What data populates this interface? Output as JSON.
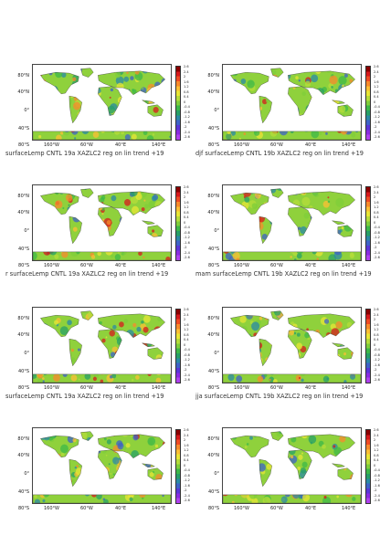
{
  "colorbar": {
    "labels": [
      "2.6",
      "2.4",
      "2",
      "1.6",
      "1.2",
      "0.8",
      "0.4",
      "0",
      "-0.4",
      "-0.8",
      "-1.2",
      "-1.6",
      "-2",
      "-2.4",
      "-2.6"
    ],
    "colors": [
      "#8b0000",
      "#d7191c",
      "#f04a24",
      "#f88a2c",
      "#fcbf34",
      "#e8e535",
      "#b5dc3a",
      "#7fcd3a",
      "#3db848",
      "#27a067",
      "#2a8aa6",
      "#3e62c8",
      "#5a36d9",
      "#8a2be2",
      "#b040f0"
    ]
  },
  "axis": {
    "lat_labels": [
      "80°N",
      "40°N",
      "0°",
      "40°S",
      "80°S"
    ],
    "lon_labels": [
      "160°W",
      "60°W",
      "40°E",
      "140°E"
    ]
  },
  "panels": [
    {
      "caption": "surfaceLemp CNTL 19a XAZLC2 reg on lin trend +19"
    },
    {
      "caption": "djf surfaceLemp CNTL 19b XAZLC2 reg on lin trend +19"
    },
    {
      "caption": "r surfaceLemp CNTL 19a XAZLC2 reg on lin trend +19"
    },
    {
      "caption": "mam surfaceLemp CNTL 19b XAZLC2 reg on lin trend +19"
    },
    {
      "caption": "surfaceLemp CNTL 19a XAZLC2 reg on lin trend +19"
    },
    {
      "caption": "jja surfaceLemp CNTL 19b XAZLC2 reg on lin trend +19"
    },
    {
      "caption": ""
    },
    {
      "caption": ""
    }
  ]
}
